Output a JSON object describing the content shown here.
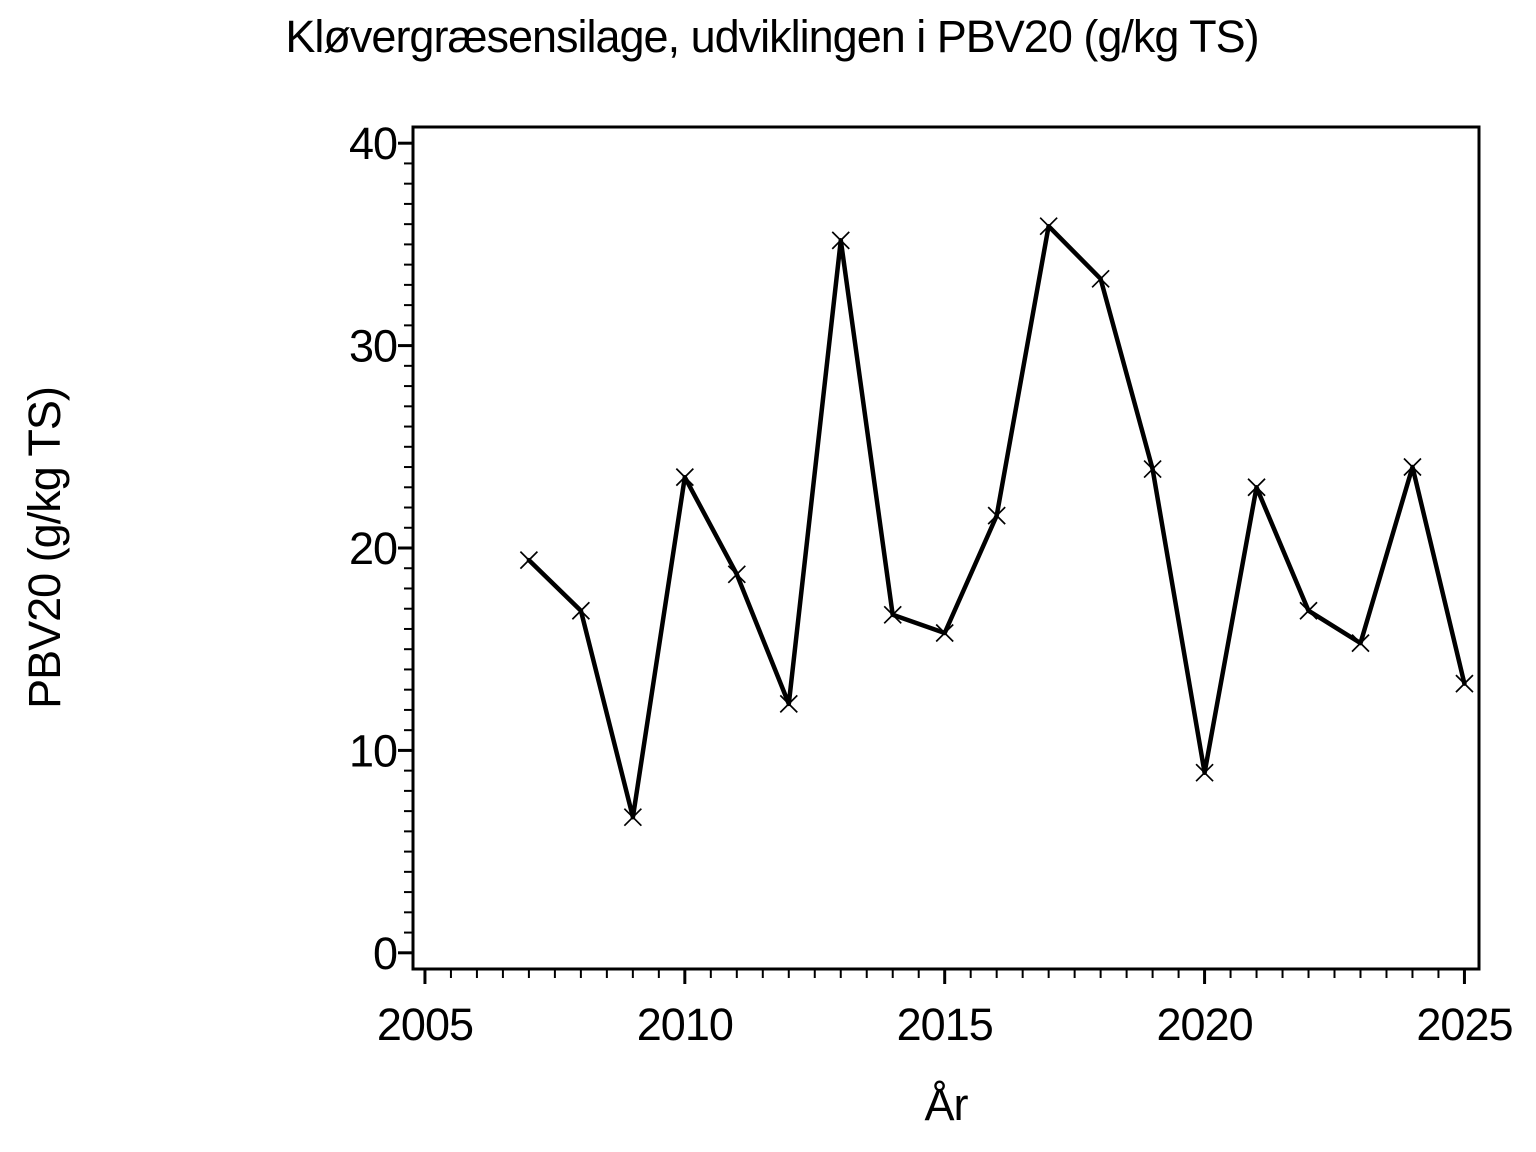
{
  "title": "Kløvergræsensilage, udviklingen i PBV20 (g/kg TS)",
  "chart_data": {
    "type": "line",
    "title": "Kløvergræsensilage, udviklingen i PBV20 (g/kg TS)",
    "xlabel": "År",
    "ylabel": "PBV20 (g/kg TS)",
    "series": [
      {
        "name": "PBV20",
        "x": [
          2007,
          2008,
          2009,
          2010,
          2011,
          2012,
          2013,
          2014,
          2015,
          2016,
          2017,
          2018,
          2019,
          2020,
          2021,
          2022,
          2023,
          2024,
          2025
        ],
        "values": [
          19.4,
          16.9,
          6.7,
          23.5,
          18.7,
          12.3,
          35.2,
          16.7,
          15.8,
          21.6,
          35.9,
          33.3,
          23.9,
          8.9,
          23.0,
          16.9,
          15.3,
          24.0,
          13.3
        ]
      }
    ],
    "xlim": [
      2004.77,
      2025.28
    ],
    "ylim": [
      -0.8,
      40.8
    ],
    "x_major_ticks": [
      2005,
      2010,
      2015,
      2020,
      2025
    ],
    "y_major_ticks": [
      0,
      10,
      20,
      30,
      40
    ],
    "x_minor_step": 0.5,
    "y_minor_step": 1,
    "marker": "x",
    "line_color": "#000000",
    "frame_color": "#000000",
    "background": "#ffffff",
    "grid": false,
    "legend_position": "none"
  }
}
